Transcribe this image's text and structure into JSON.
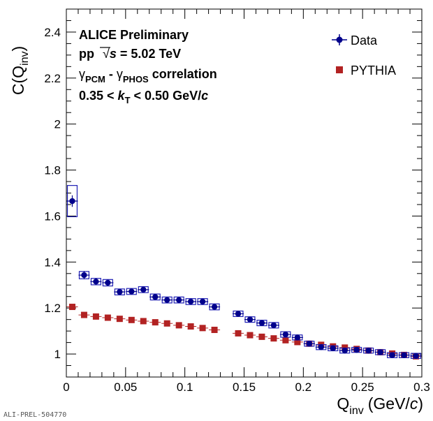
{
  "chart_data": {
    "type": "scatter",
    "xlabel": "Q",
    "xlabel_sub": "inv",
    "xlabel_unit_prefix": "(GeV/",
    "xlabel_unit_c": "c",
    "xlabel_unit_suffix": ")",
    "ylabel": "C(Q",
    "ylabel_sub": "inv",
    "ylabel_close": ")",
    "xlim": [
      0,
      0.3
    ],
    "ylim": [
      0.9,
      2.5
    ],
    "xticks": [
      0,
      0.05,
      0.1,
      0.15,
      0.2,
      0.25,
      0.3
    ],
    "xtick_labels": [
      "0",
      "0.05",
      "0.1",
      "0.15",
      "0.2",
      "0.25",
      "0.3"
    ],
    "yticks": [
      1,
      1.2,
      1.4,
      1.6,
      1.8,
      2,
      2.2,
      2.4
    ],
    "ytick_labels": [
      "1",
      "1.2",
      "1.4",
      "1.6",
      "1.8",
      "2",
      "2.2",
      "2.4"
    ],
    "grid": false,
    "legend_position": "top-right",
    "annotations": {
      "line1": "ALICE Preliminary",
      "line2_pre": "pp",
      "line2_sqrt": "√",
      "line2_s": "s",
      "line2_post": " = 5.02 TeV",
      "line3_g1": "γ",
      "line3_sub1": "PCM",
      "line3_dash": " - ",
      "line3_g2": "γ",
      "line3_sub2": "PHOS",
      "line3_post": " correlation",
      "line4_pre": "0.35 < ",
      "line4_k": "k",
      "line4_ksub": "T",
      "line4_post": " < 0.50 GeV/",
      "line4_c": "c"
    },
    "footer": "ALI-PREL-504770",
    "series": [
      {
        "name": "Data",
        "color": "#00008b",
        "box_color": "#1f1fb4",
        "marker": "circle",
        "x": [
          0.005,
          0.015,
          0.025,
          0.035,
          0.045,
          0.055,
          0.065,
          0.075,
          0.085,
          0.095,
          0.105,
          0.115,
          0.125,
          0.145,
          0.155,
          0.165,
          0.175,
          0.185,
          0.195,
          0.205,
          0.215,
          0.225,
          0.235,
          0.245,
          0.255,
          0.265,
          0.275,
          0.285,
          0.295
        ],
        "y": [
          1.665,
          1.343,
          1.315,
          1.31,
          1.27,
          1.272,
          1.28,
          1.248,
          1.235,
          1.235,
          1.228,
          1.228,
          1.205,
          1.175,
          1.15,
          1.135,
          1.125,
          1.085,
          1.072,
          1.045,
          1.03,
          1.025,
          1.015,
          1.018,
          1.015,
          1.008,
          0.995,
          0.995,
          0.992
        ],
        "stat_err": [
          0.025,
          0.018,
          0.015,
          0.013,
          0.01,
          0.01,
          0.01,
          0.01,
          0.009,
          0.009,
          0.009,
          0.009,
          0.009,
          0.009,
          0.009,
          0.009,
          0.009,
          0.009,
          0.008,
          0.008,
          0.008,
          0.008,
          0.008,
          0.008,
          0.008,
          0.008,
          0.008,
          0.008,
          0.008
        ],
        "sys_err": [
          0.068,
          0.016,
          0.014,
          0.014,
          0.013,
          0.013,
          0.013,
          0.013,
          0.013,
          0.013,
          0.013,
          0.013,
          0.013,
          0.012,
          0.012,
          0.012,
          0.012,
          0.012,
          0.011,
          0.011,
          0.011,
          0.011,
          0.011,
          0.011,
          0.011,
          0.011,
          0.011,
          0.011,
          0.011
        ]
      },
      {
        "name": "PYTHIA",
        "color": "#b22222",
        "marker": "square",
        "x": [
          0.005,
          0.015,
          0.025,
          0.035,
          0.045,
          0.055,
          0.065,
          0.075,
          0.085,
          0.095,
          0.105,
          0.115,
          0.125,
          0.145,
          0.155,
          0.165,
          0.175,
          0.185,
          0.195,
          0.205,
          0.215,
          0.225,
          0.235,
          0.245,
          0.255,
          0.265,
          0.275,
          0.285,
          0.295
        ],
        "y": [
          1.205,
          1.17,
          1.163,
          1.158,
          1.153,
          1.148,
          1.143,
          1.138,
          1.133,
          1.125,
          1.12,
          1.113,
          1.105,
          1.09,
          1.082,
          1.075,
          1.068,
          1.06,
          1.052,
          1.045,
          1.04,
          1.033,
          1.028,
          1.022,
          1.015,
          1.008,
          1.002,
          0.996,
          0.99
        ]
      }
    ]
  }
}
